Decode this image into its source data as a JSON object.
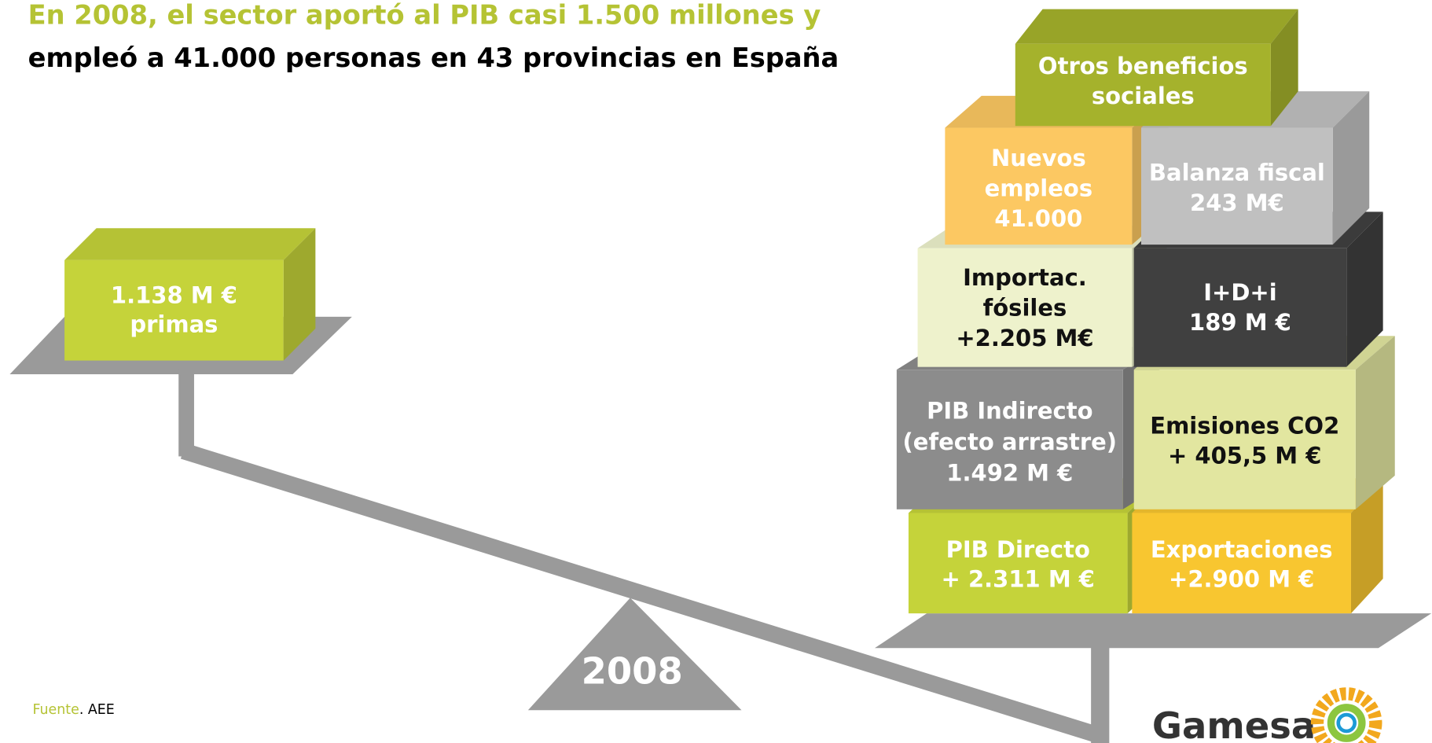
{
  "title": {
    "line1": "En 2008, el sector aportó al PIB casi 1.500 millones y",
    "line2": "empleó a 41.000 personas en 43 provincias en España"
  },
  "left_block": {
    "lines": [
      "1.138 M €",
      "primas"
    ]
  },
  "blocks": [
    {
      "lines": [
        "PIB Directo",
        "+ 2.311 M €"
      ]
    },
    {
      "lines": [
        "Exportaciones",
        "+2.900 M €"
      ]
    },
    {
      "lines": [
        "PIB Indirecto",
        "(efecto arrastre)",
        "1.492 M €"
      ]
    },
    {
      "lines": [
        "Emisiones CO2",
        "+ 405,5 M €"
      ]
    },
    {
      "lines": [
        "Importac.",
        "fósiles",
        "+2.205 M€"
      ]
    },
    {
      "lines": [
        "I+D+i",
        "189 M €"
      ]
    },
    {
      "lines": [
        "Nuevos",
        "empleos",
        "41.000"
      ]
    },
    {
      "lines": [
        "Balanza fiscal",
        "243  M€"
      ]
    },
    {
      "lines": [
        "Otros beneficios",
        "sociales"
      ]
    }
  ],
  "year": "2008",
  "source": {
    "label": "Fuente",
    "text": ". AEE"
  },
  "logo": {
    "text": "Gamesa"
  }
}
